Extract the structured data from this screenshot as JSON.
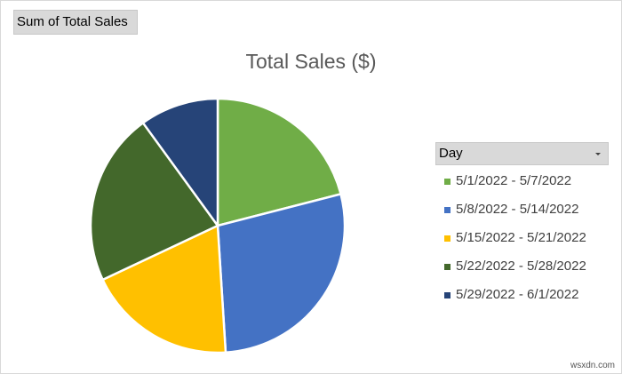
{
  "field_button": {
    "label": "Sum of Total Sales"
  },
  "chart_data": {
    "type": "pie",
    "title": "Total Sales ($)",
    "categories": [
      "5/1/2022 - 5/7/2022",
      "5/8/2022 - 5/14/2022",
      "5/15/2022 - 5/21/2022",
      "5/22/2022 - 5/28/2022",
      "5/29/2022 - 6/1/2022"
    ],
    "values": [
      21,
      28,
      19,
      22,
      10
    ],
    "colors": [
      "#70ad47",
      "#4472c4",
      "#ffc000",
      "#43682b",
      "#264478"
    ],
    "legend_placement": "right"
  },
  "legend": {
    "header": "Day",
    "icon": "chevron-down-icon"
  },
  "watermark": "wsxdn.com"
}
